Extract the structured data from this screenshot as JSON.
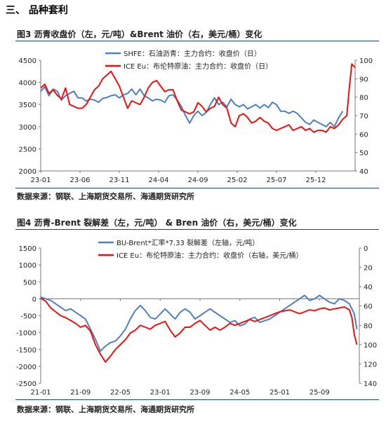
{
  "section": {
    "title": "三、  品种套利"
  },
  "figures": [
    {
      "title": "图3    沥青收盘价（左，元/吨）&Brent 油价（右，美元/桶）变化",
      "source": "数据来源：钢联、上海期货交易所、海通期货研究所"
    },
    {
      "title": "图4    沥青-Brent 裂解差（左，元/吨） & Bren 油价（右，美元/桶）变化",
      "source": "数据来源：钢联、上海期货交易所、海通期货研究所"
    }
  ],
  "chart_data": [
    {
      "type": "line",
      "x_ticks": [
        "23-01",
        "23-06",
        "23-11",
        "24-04",
        "24-09",
        "25-02",
        "25-07",
        "25-12"
      ],
      "x_range": [
        0,
        38
      ],
      "y_left_range": [
        2000,
        4500
      ],
      "y_left_ticks": [
        2000,
        2500,
        3000,
        3500,
        4000,
        4500
      ],
      "y_right_range": [
        40,
        100
      ],
      "y_right_ticks": [
        40,
        50,
        60,
        70,
        80,
        90,
        100
      ],
      "grid": false,
      "legend_position": "top-center",
      "series": [
        {
          "name": "SHFE：石油沥青：主力合约：收盘价（日）",
          "axis": "left",
          "color": "#4f7fc0",
          "x": [
            0,
            0.5,
            1,
            1.5,
            2,
            2.5,
            3,
            3.5,
            4,
            4.5,
            5,
            5.5,
            6,
            6.5,
            7,
            7.5,
            8,
            8.5,
            9,
            9.5,
            10,
            10.5,
            11,
            11.5,
            12,
            12.5,
            13,
            13.5,
            14,
            14.5,
            15,
            15.5,
            16,
            16.5,
            17,
            17.5,
            18,
            18.5,
            19,
            19.5,
            20,
            20.5,
            21,
            21.5,
            22,
            22.5,
            23,
            23.5,
            24,
            24.5,
            25,
            25.5,
            26,
            26.5,
            27,
            27.5,
            28,
            28.5,
            29,
            29.5,
            30,
            30.5,
            31,
            31.5,
            32,
            32.5,
            33,
            33.5,
            34,
            34.5,
            35,
            35.5,
            36,
            36.5
          ],
          "y": [
            3800,
            3900,
            3700,
            3850,
            3800,
            3600,
            3700,
            3750,
            3800,
            3650,
            3650,
            3580,
            3620,
            3600,
            3550,
            3640,
            3660,
            3700,
            3720,
            3650,
            3720,
            3750,
            3850,
            3720,
            3850,
            3700,
            3650,
            3580,
            3620,
            3600,
            3550,
            3700,
            3720,
            3600,
            3460,
            3250,
            3080,
            3250,
            3350,
            3250,
            3320,
            3500,
            3650,
            3500,
            3550,
            3450,
            3620,
            3500,
            3450,
            3500,
            3400,
            3450,
            3500,
            3420,
            3500,
            3430,
            3550,
            3500,
            3350,
            3350,
            3300,
            3350,
            3300,
            3200,
            3100,
            3050,
            3150,
            3100,
            3050,
            3000,
            3100,
            3000,
            3200,
            3350
          ]
        },
        {
          "name": "ICE Eu：布伦特原油：主力合约：收盘价（日）",
          "axis": "right",
          "color": "#ee1111",
          "x": [
            0,
            0.5,
            1,
            1.5,
            2,
            2.5,
            3,
            3.5,
            4,
            4.5,
            5,
            5.5,
            6,
            6.5,
            7,
            7.5,
            8,
            8.5,
            9,
            9.5,
            10,
            10.5,
            11,
            11.5,
            12,
            12.5,
            13,
            13.5,
            14,
            14.5,
            15,
            15.5,
            16,
            16.5,
            17,
            17.5,
            18,
            18.5,
            19,
            19.5,
            20,
            20.5,
            21,
            21.5,
            22,
            22.5,
            23,
            23.5,
            24,
            24.5,
            25,
            25.5,
            26,
            26.5,
            27,
            27.5,
            28,
            28.5,
            29,
            29.5,
            30,
            30.5,
            31,
            31.5,
            32,
            32.5,
            33,
            33.5,
            34,
            34.5,
            35,
            35.5,
            36,
            36.5,
            37,
            37.3,
            37.6,
            38
          ],
          "y": [
            85,
            87,
            82,
            84,
            81,
            79,
            85,
            76,
            75,
            74,
            74,
            76,
            80,
            84,
            86,
            90,
            92,
            94,
            90,
            86,
            80,
            74,
            78,
            77,
            76,
            80,
            85,
            88,
            89,
            86,
            83,
            84,
            84,
            78,
            73,
            72,
            71,
            72,
            77,
            75,
            72,
            74,
            75,
            80,
            76,
            74,
            66,
            64,
            70,
            71,
            69,
            66,
            67,
            69,
            67,
            66,
            63,
            62,
            63,
            64,
            65,
            62,
            63,
            64,
            62,
            63,
            61,
            62,
            62,
            61,
            64,
            63,
            65,
            68,
            70,
            85,
            98,
            96
          ]
        }
      ]
    },
    {
      "type": "line",
      "x_ticks": [
        "21-01",
        "21-09",
        "22-05",
        "23-01",
        "23-09",
        "24-05",
        "25-01",
        "25-09"
      ],
      "x_range": [
        0,
        64
      ],
      "y_left_range": [
        -2500,
        1500
      ],
      "y_left_ticks": [
        1500,
        1000,
        500,
        0,
        -500,
        -1000,
        -1500,
        -2000,
        -2500
      ],
      "y_right_range": [
        140,
        0
      ],
      "y_right_ticks": [
        0,
        20,
        40,
        60,
        80,
        100,
        120,
        140
      ],
      "grid": false,
      "legend_position": "top-center",
      "series": [
        {
          "name": "BU-Brent*汇率*7.33 裂解差（左轴，元/吨）",
          "axis": "left",
          "color": "#4f7fc0",
          "x": [
            0,
            1,
            2,
            3,
            4,
            5,
            6,
            7,
            8,
            9,
            10,
            11,
            12,
            13,
            14,
            15,
            16,
            17,
            18,
            19,
            20,
            21,
            22,
            23,
            24,
            25,
            26,
            27,
            28,
            29,
            30,
            31,
            32,
            33,
            34,
            35,
            36,
            37,
            38,
            39,
            40,
            41,
            42,
            43,
            44,
            45,
            46,
            47,
            48,
            49,
            50,
            51,
            52,
            53,
            54,
            55,
            56,
            57,
            58,
            59,
            60,
            61,
            62,
            62.5,
            63,
            63.5
          ],
          "y": [
            50,
            0,
            -50,
            -150,
            -250,
            -350,
            -300,
            -400,
            -500,
            -600,
            -900,
            -1200,
            -1550,
            -1400,
            -1300,
            -1250,
            -1100,
            -900,
            -600,
            -350,
            -200,
            -350,
            -550,
            -600,
            -450,
            -300,
            -450,
            -600,
            -400,
            -300,
            -400,
            -600,
            -500,
            -400,
            -300,
            -400,
            -500,
            -600,
            -700,
            -650,
            -800,
            -750,
            -600,
            -550,
            -700,
            -650,
            -600,
            -500,
            -400,
            -300,
            -200,
            -100,
            0,
            100,
            -50,
            0,
            100,
            0,
            -100,
            -150,
            0,
            -50,
            -150,
            -300,
            -450,
            -900
          ]
        },
        {
          "name": "ICE Eu：布伦特原油：主力合约：收盘价（右轴，美元/桶）",
          "axis": "right",
          "color": "#ee1111",
          "x": [
            0,
            1,
            2,
            3,
            4,
            5,
            6,
            7,
            8,
            9,
            10,
            11,
            12,
            13,
            14,
            15,
            16,
            17,
            18,
            19,
            20,
            21,
            22,
            23,
            24,
            25,
            26,
            27,
            28,
            29,
            30,
            31,
            32,
            33,
            34,
            35,
            36,
            37,
            38,
            39,
            40,
            41,
            42,
            43,
            44,
            45,
            46,
            47,
            48,
            49,
            50,
            51,
            52,
            53,
            54,
            55,
            56,
            57,
            58,
            59,
            60,
            61,
            62,
            62.5,
            63,
            63.5
          ],
          "y": [
            52,
            55,
            62,
            66,
            70,
            72,
            75,
            78,
            82,
            80,
            86,
            100,
            110,
            118,
            112,
            105,
            100,
            95,
            88,
            85,
            80,
            82,
            84,
            80,
            78,
            76,
            85,
            92,
            88,
            82,
            82,
            78,
            75,
            80,
            85,
            82,
            85,
            82,
            78,
            80,
            78,
            76,
            74,
            76,
            74,
            72,
            70,
            68,
            66,
            65,
            64,
            66,
            68,
            66,
            64,
            65,
            63,
            62,
            64,
            63,
            62,
            61,
            64,
            72,
            90,
            100
          ]
        }
      ]
    }
  ]
}
